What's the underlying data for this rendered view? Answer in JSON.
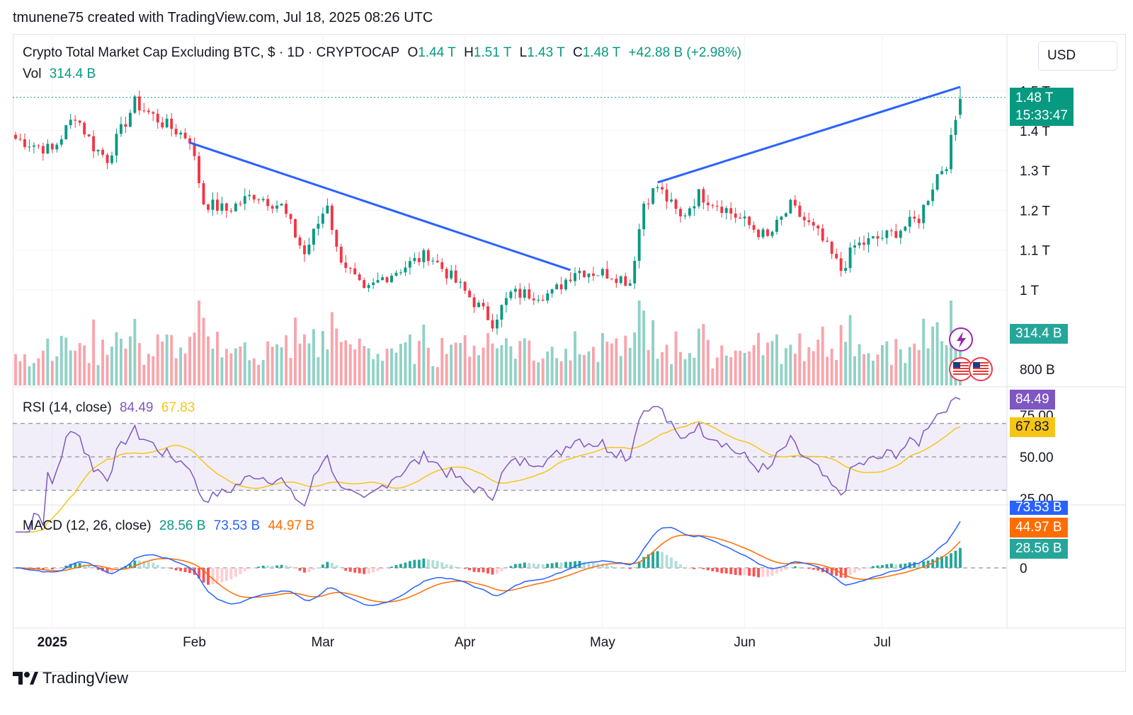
{
  "header": {
    "caption": "tmunene75 created with TradingView.com, Jul 18, 2025 08:26 UTC",
    "symbol": "Crypto Total Market Cap Excluding BTC, $ · 1D · CRYPTOCAP",
    "o_label": "O",
    "o_value": "1.44 T",
    "h_label": "H",
    "h_value": "1.51 T",
    "l_label": "L",
    "l_value": "1.43 T",
    "c_label": "C",
    "c_value": "1.48 T",
    "change": "+42.88 B (+2.98%)",
    "vol_label": "Vol",
    "vol_value": "314.4 B",
    "currency": "USD"
  },
  "price_tag": {
    "price": "1.48 T",
    "countdown": "15:33:47"
  },
  "volume_tag": "314.4 B",
  "volume_axis_label": "800 B",
  "rsi": {
    "label": "RSI (14, close)",
    "value": "84.49",
    "ma_value": "67.83",
    "axis": [
      "75.00",
      "50.00",
      "25.00"
    ]
  },
  "macd": {
    "label": "MACD (12, 26, close)",
    "hist_value": "28.56 B",
    "macd_value": "73.53 B",
    "signal_value": "44.97 B",
    "axis_zero": "0"
  },
  "brand": "TradingView",
  "colors": {
    "up": "#089981",
    "down": "#f23645",
    "trendline": "#2962ff",
    "rsi": "#7e57c2",
    "rsi_ma": "#f5c518",
    "macd": "#2962ff",
    "signal": "#ff6d00"
  },
  "icons": [
    "lightning-event-icon",
    "us-flag-event-icon",
    "us-flag-event-icon"
  ],
  "chart_data": [
    {
      "type": "candlestick",
      "title": "Crypto Total Market Cap Excluding BTC, $ · 1D · CRYPTOCAP",
      "x_tick_labels": [
        "2025",
        "Feb",
        "Mar",
        "Apr",
        "May",
        "Jun",
        "Jul"
      ],
      "y_tick_labels": [
        "1 T",
        "1.1 T",
        "1.2 T",
        "1.3 T",
        "1.4 T",
        "1.5 T"
      ],
      "ylim": [
        0.95,
        1.55
      ],
      "unit": "T USD",
      "anchor_points": [
        {
          "date": "2024-12-24",
          "close": 1.38
        },
        {
          "date": "2025-01-01",
          "close": 1.35
        },
        {
          "date": "2025-01-06",
          "close": 1.44
        },
        {
          "date": "2025-01-10",
          "close": 1.36
        },
        {
          "date": "2025-01-13",
          "close": 1.33
        },
        {
          "date": "2025-01-19",
          "close": 1.47
        },
        {
          "date": "2025-01-25",
          "close": 1.42
        },
        {
          "date": "2025-01-31",
          "close": 1.38
        },
        {
          "date": "2025-02-03",
          "close": 1.22
        },
        {
          "date": "2025-02-08",
          "close": 1.2
        },
        {
          "date": "2025-02-14",
          "close": 1.24
        },
        {
          "date": "2025-02-20",
          "close": 1.21
        },
        {
          "date": "2025-02-25",
          "close": 1.09
        },
        {
          "date": "2025-03-02",
          "close": 1.22
        },
        {
          "date": "2025-03-04",
          "close": 1.1
        },
        {
          "date": "2025-03-10",
          "close": 0.99
        },
        {
          "date": "2025-03-14",
          "close": 1.03
        },
        {
          "date": "2025-03-24",
          "close": 1.09
        },
        {
          "date": "2025-03-30",
          "close": 1.02
        },
        {
          "date": "2025-04-07",
          "close": 0.92
        },
        {
          "date": "2025-04-11",
          "close": 0.99
        },
        {
          "date": "2025-04-20",
          "close": 0.99
        },
        {
          "date": "2025-04-25",
          "close": 1.05
        },
        {
          "date": "2025-05-03",
          "close": 1.04
        },
        {
          "date": "2025-05-07",
          "close": 1.02
        },
        {
          "date": "2025-05-10",
          "close": 1.22
        },
        {
          "date": "2025-05-13",
          "close": 1.26
        },
        {
          "date": "2025-05-18",
          "close": 1.18
        },
        {
          "date": "2025-05-22",
          "close": 1.24
        },
        {
          "date": "2025-05-27",
          "close": 1.21
        },
        {
          "date": "2025-06-01",
          "close": 1.17
        },
        {
          "date": "2025-06-06",
          "close": 1.13
        },
        {
          "date": "2025-06-11",
          "close": 1.21
        },
        {
          "date": "2025-06-17",
          "close": 1.14
        },
        {
          "date": "2025-06-22",
          "close": 1.05
        },
        {
          "date": "2025-06-25",
          "close": 1.11
        },
        {
          "date": "2025-07-03",
          "close": 1.14
        },
        {
          "date": "2025-07-09",
          "close": 1.18
        },
        {
          "date": "2025-07-13",
          "close": 1.29
        },
        {
          "date": "2025-07-15",
          "close": 1.32
        },
        {
          "date": "2025-07-18",
          "open": 1.44,
          "high": 1.51,
          "low": 1.43,
          "close": 1.48
        }
      ],
      "trendlines": [
        {
          "from": {
            "date": "2025-01-31",
            "value": 1.37
          },
          "to": {
            "date": "2025-04-24",
            "value": 1.05
          }
        },
        {
          "from": {
            "date": "2025-05-13",
            "value": 1.27
          },
          "to": {
            "date": "2025-07-18",
            "value": 1.51
          }
        }
      ]
    },
    {
      "type": "bar",
      "title": "Volume",
      "last_value": "314.4 B",
      "y_tick_labels": [
        "800 B"
      ]
    },
    {
      "type": "line",
      "title": "RSI (14, close)",
      "series": [
        {
          "name": "RSI",
          "last": 84.49
        },
        {
          "name": "RSI MA",
          "last": 67.83
        }
      ],
      "levels": [
        70,
        50,
        30
      ],
      "y_tick_labels": [
        "75.00",
        "50.00",
        "25.00"
      ]
    },
    {
      "type": "line",
      "title": "MACD (12, 26, close)",
      "series": [
        {
          "name": "Histogram",
          "last": "28.56 B"
        },
        {
          "name": "MACD",
          "last": "73.53 B"
        },
        {
          "name": "Signal",
          "last": "44.97 B"
        }
      ],
      "y_tick_labels": [
        "0"
      ]
    }
  ]
}
